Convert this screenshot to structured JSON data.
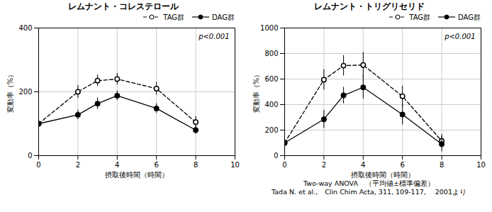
{
  "chart_data": [
    {
      "type": "line",
      "title": "レムナント・コレステロール",
      "xlabel": "摂取後時間（時間）",
      "ylabel": "変動率（%）",
      "x": [
        0,
        2,
        3,
        4,
        6,
        8
      ],
      "series": [
        {
          "name": "TAG群",
          "color": "#000000",
          "marker": "circle-open",
          "line_style": "dashed",
          "values": [
            100,
            200,
            235,
            240,
            210,
            105
          ],
          "error": [
            10,
            20,
            18,
            18,
            20,
            18
          ]
        },
        {
          "name": "DAG群",
          "color": "#000000",
          "marker": "circle",
          "line_style": "solid",
          "values": [
            100,
            128,
            163,
            188,
            148,
            80
          ],
          "error": [
            8,
            15,
            18,
            15,
            15,
            12
          ]
        }
      ],
      "xlim": [
        0,
        10
      ],
      "xticks": [
        0,
        2,
        4,
        6,
        8,
        10
      ],
      "ylim": [
        0,
        400
      ],
      "yticks": [
        0,
        200,
        400
      ],
      "grid": true,
      "legend": "upper right",
      "annotations": [
        "p<0.001"
      ]
    },
    {
      "type": "line",
      "title": "レムナント・トリグリセリド",
      "xlabel": "摂取後時間（時間）",
      "ylabel": "変動率（%）",
      "x": [
        0,
        2,
        3,
        4,
        6,
        8
      ],
      "series": [
        {
          "name": "TAG群",
          "color": "#000000",
          "marker": "circle-open",
          "line_style": "dashed",
          "values": [
            100,
            595,
            705,
            710,
            465,
            115
          ],
          "error": [
            10,
            80,
            80,
            100,
            80,
            50
          ]
        },
        {
          "name": "DAG群",
          "color": "#000000",
          "marker": "circle",
          "line_style": "solid",
          "values": [
            100,
            285,
            472,
            535,
            322,
            90
          ],
          "error": [
            10,
            70,
            65,
            90,
            80,
            60
          ]
        }
      ],
      "xlim": [
        0,
        10
      ],
      "xticks": [
        0,
        2,
        4,
        6,
        8,
        10
      ],
      "ylim": [
        0,
        1000
      ],
      "yticks": [
        0,
        200,
        400,
        600,
        800,
        1000
      ],
      "grid": true,
      "legend": "upper right",
      "annotations": [
        "p<0.001"
      ],
      "caption": [
        "Two-way ANOVA　（平均値±標準偏差）",
        "Tada N. et al.,　Clin Chim Acta, 311, 109-117,　 2001より"
      ]
    }
  ]
}
